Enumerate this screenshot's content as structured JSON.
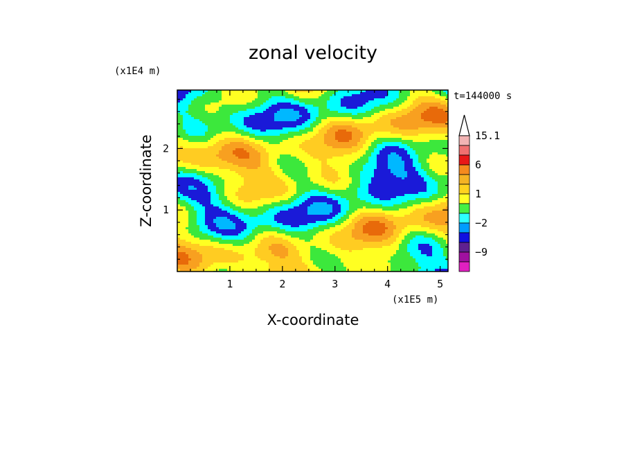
{
  "chart_data": {
    "type": "heatmap",
    "title": "zonal velocity",
    "xlabel": "X-coordinate",
    "ylabel": "Z-coordinate",
    "x_scale_label": "(x1E5 m)",
    "y_scale_label": "(x1E4 m)",
    "time_label": "t=144000 s",
    "xlim": [
      0,
      5.15
    ],
    "ylim": [
      0,
      2.95
    ],
    "x_ticks": [
      1,
      2,
      3,
      4,
      5
    ],
    "y_ticks": [
      1,
      2
    ],
    "x_tick_labels": [
      "1",
      "2",
      "3",
      "4",
      "5"
    ],
    "y_tick_labels": [
      "1",
      "2"
    ],
    "colorbar": {
      "levels_shown": [
        "15.1",
        "6",
        "1",
        "−2",
        "−9"
      ],
      "bins": [
        {
          "color": "#f2b4b4"
        },
        {
          "color": "#f07070"
        },
        {
          "color": "#e81818"
        },
        {
          "color": "#f58a1e"
        },
        {
          "color": "#f5b324"
        },
        {
          "color": "#ffd21f"
        },
        {
          "color": "#ffff26"
        },
        {
          "color": "#44f044"
        },
        {
          "color": "#2dffff"
        },
        {
          "color": "#009cff"
        },
        {
          "color": "#1010e0"
        },
        {
          "color": "#602090"
        },
        {
          "color": "#a010a0"
        },
        {
          "color": "#e020c0"
        }
      ],
      "label_bins": [
        0,
        3,
        6,
        9,
        12
      ],
      "extend": "max"
    },
    "field_palette": [
      "#00b8ff",
      "#1a1ad8",
      "#00ffff",
      "#3ce83c",
      "#ffff22",
      "#ffcc22",
      "#f8a020",
      "#e86a0a"
    ]
  }
}
